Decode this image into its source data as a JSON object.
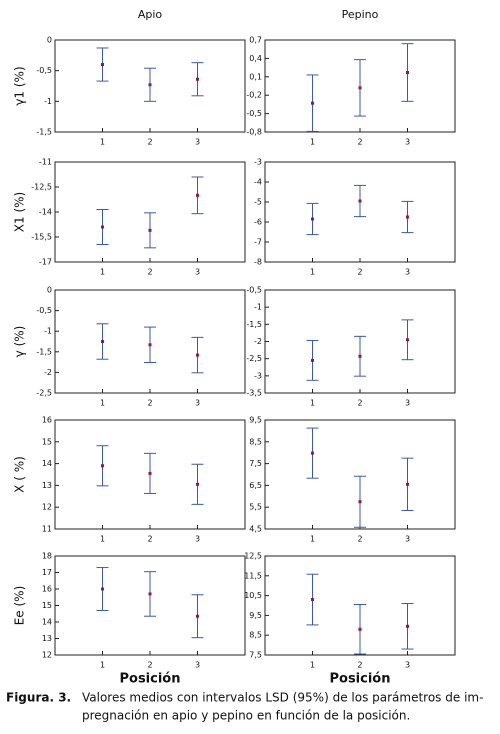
{
  "chart_data": [
    {
      "type": "errorbar",
      "title": "Apio",
      "y_label": "γ1 (%)",
      "categories": [
        "1",
        "2",
        "3"
      ],
      "values": [
        -0.4,
        -0.73,
        -0.64
      ],
      "errors": [
        0.27,
        0.27,
        0.27
      ],
      "ylim": [
        -1.5,
        0
      ],
      "yticks": [
        0,
        {
          "value": -0.5,
          "label": "-0,5"
        },
        -1,
        {
          "value": -1.5,
          "label": "-1,5"
        }
      ],
      "color": "#3a5aa8",
      "marker_color": "#8b1a4a"
    },
    {
      "type": "errorbar",
      "title": "Pepino",
      "categories": [
        "1",
        "2",
        "3"
      ],
      "values": [
        -0.33,
        -0.08,
        0.17
      ],
      "errors": [
        0.46,
        0.46,
        0.47
      ],
      "ylim": [
        -0.8,
        0.7
      ],
      "yticks": [
        {
          "value": 0.7,
          "label": "0,7"
        },
        {
          "value": 0.4,
          "label": "0,4"
        },
        {
          "value": 0.1,
          "label": "0,1"
        },
        {
          "value": -0.2,
          "label": "-0,2"
        },
        {
          "value": -0.5,
          "label": "-0,5"
        },
        {
          "value": -0.8,
          "label": "-0,8"
        }
      ],
      "color": "#3a5aa8",
      "marker_color": "#8b1a4a"
    },
    {
      "type": "errorbar",
      "y_label": "X1 (%)",
      "categories": [
        "1",
        "2",
        "3"
      ],
      "values": [
        -14.9,
        -15.1,
        -13.0
      ],
      "errors": [
        1.05,
        1.05,
        1.1
      ],
      "ylim": [
        -17,
        -11
      ],
      "yticks": [
        -11,
        {
          "value": -12.5,
          "label": "-12,5"
        },
        -14,
        {
          "value": -15.5,
          "label": "-15,5"
        },
        -17
      ],
      "color": "#3a5aa8",
      "marker_color": "#8b1a4a"
    },
    {
      "type": "errorbar",
      "categories": [
        "1",
        "2",
        "3"
      ],
      "values": [
        -5.85,
        -4.95,
        -5.75
      ],
      "errors": [
        0.78,
        0.78,
        0.78
      ],
      "ylim": [
        -8,
        -3
      ],
      "yticks": [
        -3,
        -4,
        -5,
        -6,
        -7,
        -8
      ],
      "color": "#3a5aa8",
      "marker_color": "#8b1a4a"
    },
    {
      "type": "errorbar",
      "y_label": "γ (%)",
      "categories": [
        "1",
        "2",
        "3"
      ],
      "values": [
        -1.25,
        -1.33,
        -1.58
      ],
      "errors": [
        0.43,
        0.43,
        0.43
      ],
      "ylim": [
        -2.5,
        0
      ],
      "yticks": [
        0,
        {
          "value": -0.5,
          "label": "-0,5"
        },
        -1,
        {
          "value": -1.5,
          "label": "-1,5"
        },
        -2,
        {
          "value": -2.5,
          "label": "-2,5"
        }
      ],
      "color": "#3a5aa8",
      "marker_color": "#8b1a4a"
    },
    {
      "type": "errorbar",
      "categories": [
        "1",
        "2",
        "3"
      ],
      "values": [
        -2.55,
        -2.43,
        -1.95
      ],
      "errors": [
        0.58,
        0.58,
        0.58
      ],
      "ylim": [
        -3.5,
        -0.5
      ],
      "yticks": [
        {
          "value": -0.5,
          "label": "-0,5"
        },
        -1,
        {
          "value": -1.5,
          "label": "-1,5"
        },
        -2,
        {
          "value": -2.5,
          "label": "-2,5"
        },
        -3,
        {
          "value": -3.5,
          "label": "-3,5"
        }
      ],
      "color": "#3a5aa8",
      "marker_color": "#8b1a4a"
    },
    {
      "type": "errorbar",
      "y_label": "X ( %)",
      "categories": [
        "1",
        "2",
        "3"
      ],
      "values": [
        13.9,
        13.55,
        13.05
      ],
      "errors": [
        0.92,
        0.92,
        0.92
      ],
      "ylim": [
        11,
        16
      ],
      "yticks": [
        16,
        15,
        14,
        13,
        12,
        11
      ],
      "color": "#3a5aa8",
      "marker_color": "#8b1a4a"
    },
    {
      "type": "errorbar",
      "categories": [
        "1",
        "2",
        "3"
      ],
      "values": [
        7.98,
        5.75,
        6.55
      ],
      "errors": [
        1.15,
        1.17,
        1.2
      ],
      "ylim": [
        4.5,
        9.5
      ],
      "yticks": [
        {
          "value": 9.5,
          "label": "9,5"
        },
        {
          "value": 8.5,
          "label": "8,5"
        },
        {
          "value": 7.5,
          "label": "7,5"
        },
        {
          "value": 6.5,
          "label": "6,5"
        },
        {
          "value": 5.5,
          "label": "5,5"
        },
        {
          "value": 4.5,
          "label": "4,5"
        }
      ],
      "color": "#3a5aa8",
      "marker_color": "#8b1a4a"
    },
    {
      "type": "errorbar",
      "y_label": "Ee (%)",
      "x_label": "Posición",
      "categories": [
        "1",
        "2",
        "3"
      ],
      "values": [
        16.0,
        15.7,
        14.35
      ],
      "errors": [
        1.3,
        1.35,
        1.3
      ],
      "ylim": [
        12,
        18
      ],
      "yticks": [
        18,
        17,
        16,
        15,
        14,
        13,
        12
      ],
      "color": "#3a5aa8",
      "marker_color": "#8b1a4a"
    },
    {
      "type": "errorbar",
      "x_label": "Posición",
      "categories": [
        "1",
        "2",
        "3"
      ],
      "values": [
        10.3,
        8.8,
        8.95
      ],
      "errors": [
        1.28,
        1.25,
        1.15
      ],
      "ylim": [
        7.5,
        12.5
      ],
      "yticks": [
        {
          "value": 12.5,
          "label": "12,5"
        },
        {
          "value": 11.5,
          "label": "11,5"
        },
        {
          "value": 10.5,
          "label": "10,5"
        },
        {
          "value": 9.5,
          "label": "9,5"
        },
        {
          "value": 8.5,
          "label": "8,5"
        },
        {
          "value": 7.5,
          "label": "7,5"
        }
      ],
      "color": "#3a5aa8",
      "marker_color": "#8b1a4a"
    }
  ],
  "figure_label": "Figura. 3.",
  "caption": [
    "Valores medios con intervalos LSD (95%) de los parámetros de im-",
    "pregnación en apio y pepino en función de la posición."
  ]
}
